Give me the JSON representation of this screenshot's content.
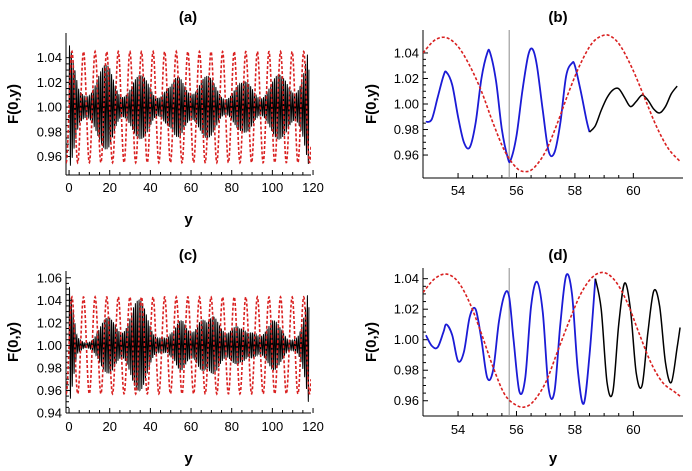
{
  "colors": {
    "model": "#000000",
    "dashed": "#d92020",
    "highlight": "#1b1bd6",
    "marker": "#8a8a8a"
  },
  "chart_data": [
    {
      "panel": "(a)",
      "type": "line",
      "xlabel": "y",
      "ylabel": "F(0,y)",
      "xlim": [
        -1.5,
        119
      ],
      "ylim": [
        0.945,
        1.06
      ],
      "xticks": [
        0,
        20,
        40,
        60,
        80,
        100,
        120
      ],
      "yticks": [
        0.96,
        0.98,
        1.0,
        1.02,
        1.04
      ],
      "series": [
        {
          "style": "solid-black",
          "description_of_shape": "fast oscillation about 1.00, beating envelope",
          "x": [
            0,
            5,
            10,
            15,
            20,
            25,
            30,
            35,
            40,
            45,
            50,
            55,
            60,
            65,
            70,
            75,
            80,
            85,
            90,
            95,
            100,
            105,
            110,
            115,
            118
          ],
          "envelope": [
            0.052,
            0.02,
            0.03,
            0.032,
            0.036,
            0.028,
            0.024,
            0.026,
            0.03,
            0.022,
            0.018,
            0.03,
            0.034,
            0.028,
            0.024,
            0.02,
            0.022,
            0.02,
            0.024,
            0.022,
            0.024,
            0.028,
            0.036,
            0.04,
            0.052
          ],
          "mean": 1.0
        },
        {
          "style": "dashed-red",
          "description_of_shape": "sinusoid",
          "amplitude": 0.045,
          "mean": 1.0,
          "period": 5.7
        }
      ]
    },
    {
      "panel": "(b)",
      "type": "line",
      "xlabel": "",
      "ylabel": "F(0,y)",
      "xlim": [
        52.8,
        61.7
      ],
      "ylim": [
        0.942,
        1.058
      ],
      "xticks": [
        54,
        56,
        58,
        60
      ],
      "yticks": [
        0.96,
        0.98,
        1.0,
        1.02,
        1.04
      ],
      "vline": 55.75,
      "series": [
        {
          "style": "solid-blue",
          "x": [
            52.9,
            53.1,
            53.3,
            53.5,
            53.6,
            53.8,
            54.0,
            54.2,
            54.4,
            54.6,
            54.8,
            55.0,
            55.1,
            55.3,
            55.5,
            55.7,
            55.8,
            56.0,
            56.2,
            56.4,
            56.55,
            56.7,
            56.9,
            57.1,
            57.3,
            57.5,
            57.7,
            57.9,
            58.0,
            58.2,
            58.4,
            58.5
          ],
          "y": [
            0.986,
            0.988,
            1.005,
            1.022,
            1.025,
            1.015,
            0.99,
            0.97,
            0.966,
            0.985,
            1.02,
            1.04,
            1.04,
            1.018,
            0.98,
            0.958,
            0.956,
            0.975,
            1.01,
            1.038,
            1.043,
            1.03,
            0.995,
            0.963,
            0.962,
            0.985,
            1.022,
            1.032,
            1.03,
            1.01,
            0.987,
            0.978
          ]
        },
        {
          "style": "solid-black",
          "x": [
            58.5,
            58.7,
            58.9,
            59.1,
            59.3,
            59.5,
            59.7,
            59.9,
            60.1,
            60.3,
            60.5,
            60.7,
            60.9,
            61.1,
            61.3,
            61.5
          ],
          "y": [
            0.978,
            0.983,
            0.995,
            1.005,
            1.011,
            1.012,
            1.005,
            0.998,
            1.002,
            1.007,
            1.003,
            0.996,
            0.993,
            0.998,
            1.008,
            1.014
          ]
        },
        {
          "style": "dashed-red",
          "x": [
            52.8,
            53.2,
            53.6,
            54.0,
            54.4,
            54.8,
            55.2,
            55.6,
            56.0,
            56.3,
            56.6,
            57.0,
            57.4,
            57.8,
            58.2,
            58.6,
            59.0,
            59.3,
            59.6,
            60.0,
            60.4,
            60.8,
            61.2,
            61.6
          ],
          "y": [
            1.04,
            1.05,
            1.052,
            1.045,
            1.03,
            1.01,
            0.985,
            0.963,
            0.95,
            0.947,
            0.95,
            0.963,
            0.985,
            1.01,
            1.032,
            1.048,
            1.054,
            1.052,
            1.044,
            1.026,
            1.004,
            0.982,
            0.965,
            0.955
          ]
        }
      ]
    },
    {
      "panel": "(c)",
      "type": "line",
      "xlabel": "y",
      "ylabel": "F(0,y)",
      "xlim": [
        -1.5,
        119
      ],
      "ylim": [
        0.94,
        1.066
      ],
      "xticks": [
        0,
        20,
        40,
        60,
        80,
        100,
        120
      ],
      "yticks": [
        0.94,
        0.96,
        0.98,
        1.0,
        1.02,
        1.04,
        1.06
      ],
      "series": [
        {
          "style": "solid-black",
          "description_of_shape": "fast oscillation with lobed beating envelope",
          "x": [
            0,
            4,
            8,
            12,
            16,
            20,
            24,
            28,
            32,
            36,
            40,
            44,
            48,
            52,
            56,
            60,
            64,
            68,
            72,
            76,
            80,
            84,
            88,
            92,
            96,
            100,
            104,
            108,
            112,
            116,
            118
          ],
          "envelope": [
            0.055,
            0.01,
            0.006,
            0.012,
            0.02,
            0.028,
            0.034,
            0.04,
            0.042,
            0.04,
            0.032,
            0.02,
            0.008,
            0.014,
            0.034,
            0.038,
            0.034,
            0.02,
            0.032,
            0.038,
            0.03,
            0.016,
            0.012,
            0.024,
            0.028,
            0.026,
            0.016,
            0.008,
            0.02,
            0.04,
            0.058
          ],
          "mean": 1.0
        },
        {
          "style": "dashed-red",
          "description_of_shape": "sinusoid",
          "amplitude": 0.043,
          "mean": 1.0,
          "period": 5.7
        }
      ]
    },
    {
      "panel": "(d)",
      "type": "line",
      "xlabel": "y",
      "ylabel": "F(0,y)",
      "xlim": [
        52.8,
        61.7
      ],
      "ylim": [
        0.95,
        1.047
      ],
      "xticks": [
        54,
        56,
        58,
        60
      ],
      "yticks": [
        0.96,
        0.98,
        1.0,
        1.02,
        1.04
      ],
      "vline": 55.75,
      "series": [
        {
          "style": "solid-blue",
          "x": [
            52.9,
            53.1,
            53.3,
            53.5,
            53.6,
            53.8,
            54.0,
            54.2,
            54.4,
            54.6,
            54.8,
            55.0,
            55.2,
            55.4,
            55.6,
            55.75,
            55.9,
            56.1,
            56.3,
            56.5,
            56.7,
            56.9,
            57.1,
            57.3,
            57.5,
            57.7,
            57.9,
            58.1,
            58.3,
            58.5,
            58.7
          ],
          "y": [
            1.003,
            0.996,
            0.995,
            1.005,
            1.01,
            1.003,
            0.986,
            0.992,
            1.015,
            1.02,
            1.0,
            0.975,
            0.98,
            1.012,
            1.03,
            1.028,
            1.0,
            0.966,
            0.975,
            1.022,
            1.038,
            1.018,
            0.968,
            0.966,
            1.01,
            1.042,
            1.03,
            0.98,
            0.958,
            0.99,
            1.04
          ]
        },
        {
          "style": "solid-black",
          "x": [
            58.7,
            58.9,
            59.1,
            59.3,
            59.5,
            59.7,
            59.9,
            60.1,
            60.3,
            60.5,
            60.7,
            60.9,
            61.1,
            61.3,
            61.5,
            61.6
          ],
          "y": [
            1.04,
            1.02,
            0.972,
            0.966,
            1.01,
            1.037,
            1.02,
            0.978,
            0.97,
            1.005,
            1.032,
            1.022,
            0.985,
            0.972,
            0.995,
            1.008
          ]
        },
        {
          "style": "dashed-red",
          "x": [
            52.8,
            53.2,
            53.6,
            54.0,
            54.4,
            54.8,
            55.2,
            55.6,
            56.0,
            56.3,
            56.6,
            57.0,
            57.4,
            57.8,
            58.2,
            58.6,
            59.0,
            59.4,
            59.8,
            60.2,
            60.6,
            61.0,
            61.4,
            61.6
          ],
          "y": [
            1.031,
            1.04,
            1.043,
            1.038,
            1.024,
            1.004,
            0.982,
            0.964,
            0.957,
            0.956,
            0.96,
            0.972,
            0.992,
            1.012,
            1.03,
            1.041,
            1.044,
            1.038,
            1.024,
            1.004,
            0.985,
            0.972,
            0.966,
            0.963
          ]
        }
      ]
    }
  ]
}
